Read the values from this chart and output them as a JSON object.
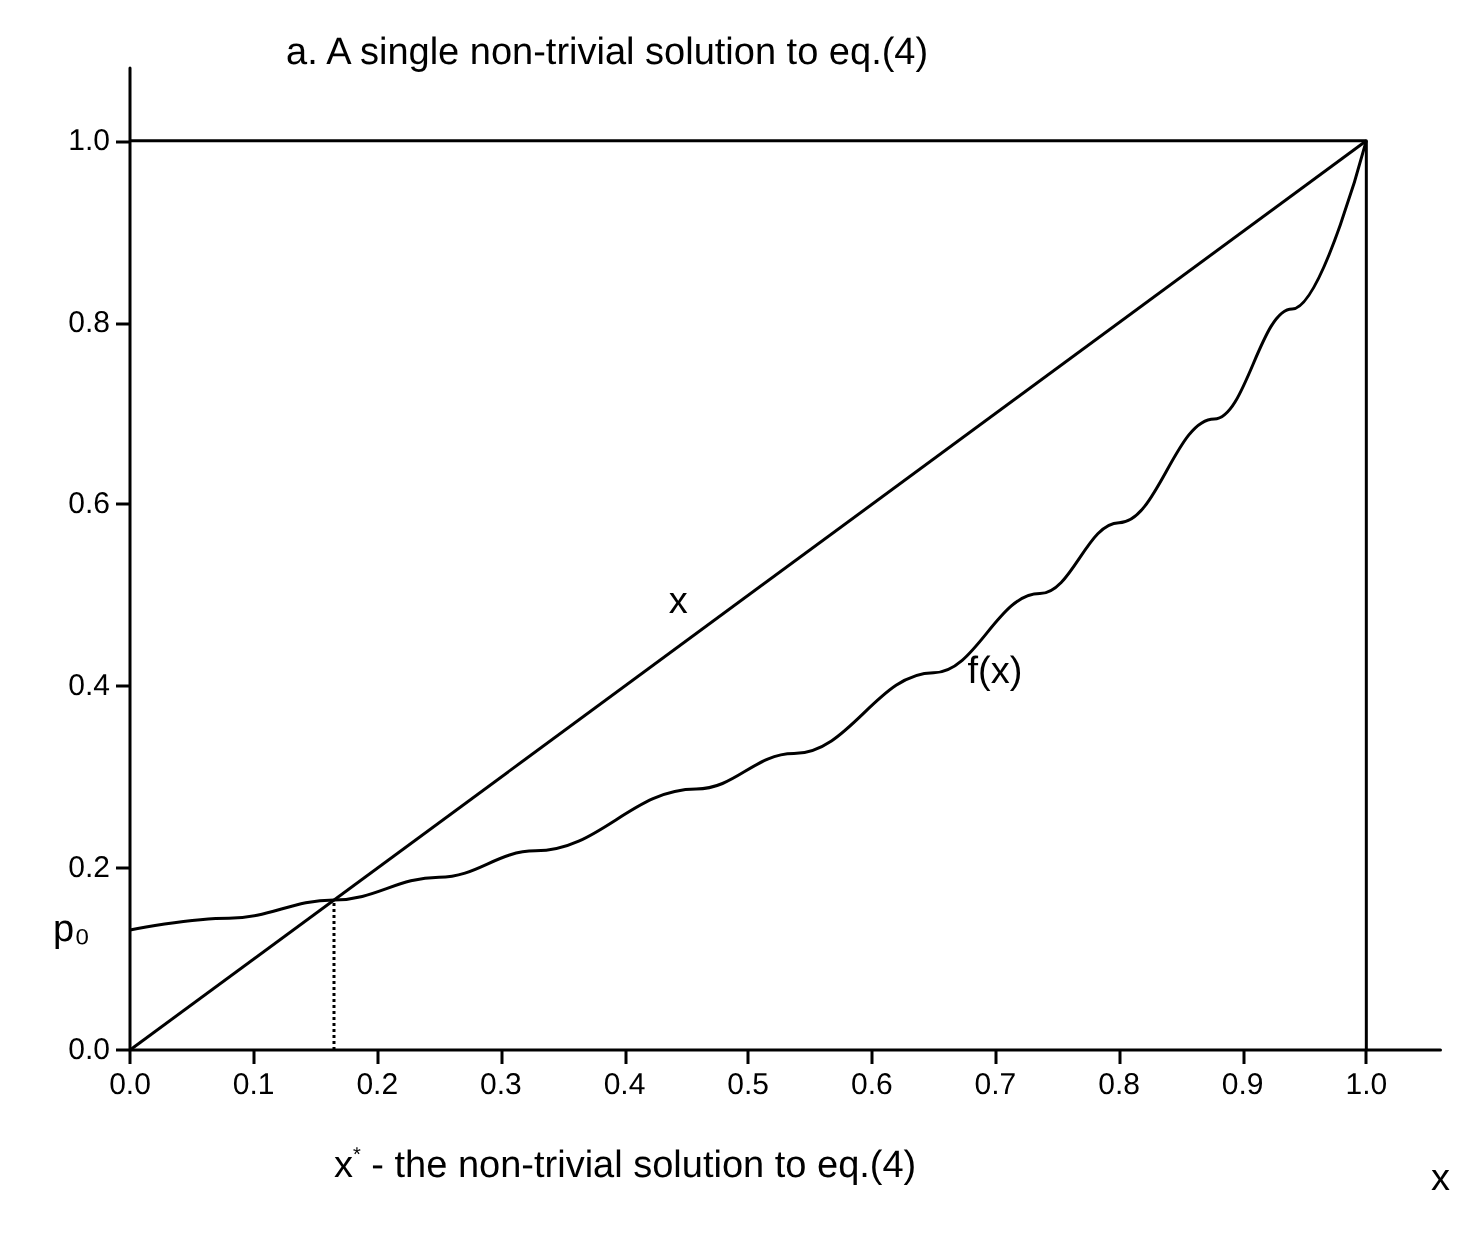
{
  "chart_data": {
    "type": "line",
    "title": "a. A single non-trivial solution to eq.(4)",
    "xlabel": "x",
    "xlim": [
      0,
      1.06
    ],
    "ylim": [
      0,
      1.08
    ],
    "xticks": [
      {
        "value": 0,
        "label": "0.0"
      },
      {
        "value": 0.1,
        "label": "0.1"
      },
      {
        "value": 0.2,
        "label": "0.2"
      },
      {
        "value": 0.3,
        "label": "0.3"
      },
      {
        "value": 0.4,
        "label": "0.4"
      },
      {
        "value": 0.5,
        "label": "0.5"
      },
      {
        "value": 0.6,
        "label": "0.6"
      },
      {
        "value": 0.7,
        "label": "0.7"
      },
      {
        "value": 0.8,
        "label": "0.8"
      },
      {
        "value": 0.9,
        "label": "0.9"
      },
      {
        "value": 1,
        "label": "1.0"
      }
    ],
    "yticks": [
      {
        "value": 0,
        "label": "0.0"
      },
      {
        "value": 0.2,
        "label": "0.2"
      },
      {
        "value": 0.4,
        "label": "0.4"
      },
      {
        "value": 0.6,
        "label": "0.6"
      },
      {
        "value": 0.8,
        "label": "0.8"
      },
      {
        "value": 1,
        "label": "1.0"
      }
    ],
    "grid": false,
    "legend": false,
    "marker": "none",
    "line_style": "solid",
    "series": [
      {
        "name": "x",
        "color": "#000000",
        "x": [
          0,
          1
        ],
        "values": [
          0,
          1
        ]
      },
      {
        "name": "f(x)",
        "color": "#000000",
        "x": [
          0,
          0.08,
          0.165,
          0.25,
          0.328,
          0.458,
          0.537,
          0.65,
          0.736,
          0.8,
          0.877,
          0.94,
          1
        ],
        "values": [
          0.132,
          0.145,
          0.165,
          0.19,
          0.219,
          0.287,
          0.326,
          0.415,
          0.502,
          0.58,
          0.694,
          0.815,
          1
        ]
      },
      {
        "color": "#000000",
        "x": [
          0,
          1,
          1
        ],
        "values": [
          1,
          1,
          0
        ]
      },
      {
        "color": "#000000",
        "x": [
          0.165,
          0.165
        ],
        "values": [
          0,
          0.165
        ],
        "line_style": "dotted"
      }
    ],
    "annotations": [
      {
        "text": "p₀",
        "x": 0,
        "y": 0.132
      },
      "x$^{*}$ - the non-trivial solution to eq.(4)"
    ]
  }
}
